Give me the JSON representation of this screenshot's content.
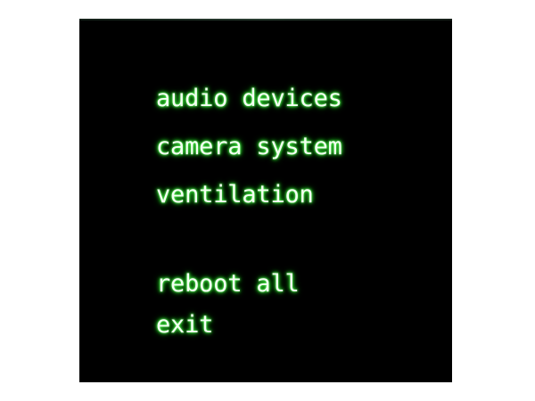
{
  "colors": {
    "outer_background": "#ffffff",
    "screen_background": "#000000",
    "menu_text": "#f4fff2",
    "menu_glow": "#32e232"
  },
  "menu": {
    "items": [
      {
        "label": "audio devices"
      },
      {
        "label": "camera system"
      },
      {
        "label": "ventilation"
      },
      {
        "label": "reboot all"
      },
      {
        "label": "exit"
      }
    ]
  }
}
